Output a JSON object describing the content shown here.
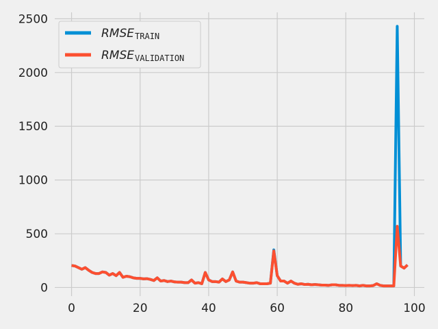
{
  "chart_data": {
    "type": "line",
    "title": "",
    "xlabel": "",
    "ylabel": "",
    "xlim": [
      -4.9,
      102.9
    ],
    "ylim": [
      -80,
      2560
    ],
    "x_ticks": [
      0,
      20,
      40,
      60,
      80,
      100
    ],
    "x_tick_labels": [
      "0",
      "20",
      "40",
      "60",
      "80",
      "100"
    ],
    "y_ticks": [
      0,
      500,
      1000,
      1500,
      2000,
      2500
    ],
    "y_tick_labels": [
      "0",
      "500",
      "1000",
      "1500",
      "2000",
      "2500"
    ],
    "grid": true,
    "legend_position": "top-left",
    "series": [
      {
        "name": "RMSE TRAIN",
        "legend_main": "RMSE",
        "legend_sub": "TRAIN",
        "color": "#008fd5",
        "x": [
          0,
          1,
          2,
          3,
          4,
          5,
          6,
          7,
          8,
          9,
          10,
          11,
          12,
          13,
          14,
          15,
          16,
          17,
          18,
          19,
          20,
          21,
          22,
          23,
          24,
          25,
          26,
          27,
          28,
          29,
          30,
          31,
          32,
          33,
          34,
          35,
          36,
          37,
          38,
          39,
          40,
          41,
          42,
          43,
          44,
          45,
          46,
          47,
          48,
          49,
          50,
          51,
          52,
          53,
          54,
          55,
          56,
          57,
          58,
          59,
          60,
          61,
          62,
          63,
          64,
          65,
          66,
          67,
          68,
          69,
          70,
          71,
          72,
          73,
          74,
          75,
          76,
          77,
          78,
          79,
          80,
          81,
          82,
          83,
          84,
          85,
          86,
          87,
          88,
          89,
          90,
          91,
          92,
          93,
          94,
          95,
          96,
          97,
          98
        ],
        "values": [
          205,
          200,
          185,
          170,
          185,
          160,
          140,
          130,
          130,
          145,
          140,
          115,
          130,
          110,
          140,
          95,
          105,
          100,
          90,
          85,
          85,
          80,
          82,
          75,
          65,
          90,
          60,
          65,
          55,
          60,
          52,
          50,
          50,
          45,
          45,
          70,
          40,
          45,
          35,
          140,
          70,
          55,
          55,
          50,
          80,
          55,
          70,
          145,
          60,
          50,
          50,
          45,
          40,
          40,
          45,
          35,
          35,
          35,
          40,
          350,
          110,
          60,
          60,
          40,
          60,
          40,
          30,
          35,
          28,
          30,
          25,
          28,
          25,
          22,
          22,
          20,
          25,
          25,
          20,
          20,
          18,
          20,
          18,
          20,
          15,
          20,
          15,
          15,
          18,
          35,
          20,
          15,
          15,
          15,
          15,
          2430,
          200,
          180,
          210
        ]
      },
      {
        "name": "RMSE VALIDATION",
        "legend_main": "RMSE",
        "legend_sub": "VALIDATION",
        "color": "#fc4f30",
        "x": [
          0,
          1,
          2,
          3,
          4,
          5,
          6,
          7,
          8,
          9,
          10,
          11,
          12,
          13,
          14,
          15,
          16,
          17,
          18,
          19,
          20,
          21,
          22,
          23,
          24,
          25,
          26,
          27,
          28,
          29,
          30,
          31,
          32,
          33,
          34,
          35,
          36,
          37,
          38,
          39,
          40,
          41,
          42,
          43,
          44,
          45,
          46,
          47,
          48,
          49,
          50,
          51,
          52,
          53,
          54,
          55,
          56,
          57,
          58,
          59,
          60,
          61,
          62,
          63,
          64,
          65,
          66,
          67,
          68,
          69,
          70,
          71,
          72,
          73,
          74,
          75,
          76,
          77,
          78,
          79,
          80,
          81,
          82,
          83,
          84,
          85,
          86,
          87,
          88,
          89,
          90,
          91,
          92,
          93,
          94,
          95,
          96,
          97,
          98
        ],
        "values": [
          205,
          200,
          185,
          170,
          185,
          160,
          140,
          130,
          130,
          145,
          140,
          115,
          130,
          110,
          140,
          95,
          105,
          100,
          90,
          85,
          85,
          80,
          82,
          75,
          65,
          90,
          60,
          65,
          55,
          60,
          52,
          50,
          50,
          45,
          45,
          70,
          40,
          45,
          35,
          140,
          70,
          55,
          55,
          50,
          80,
          55,
          70,
          145,
          60,
          50,
          50,
          45,
          40,
          40,
          45,
          35,
          35,
          35,
          40,
          340,
          110,
          60,
          60,
          40,
          60,
          40,
          30,
          35,
          28,
          30,
          25,
          28,
          25,
          22,
          22,
          20,
          25,
          25,
          20,
          20,
          18,
          20,
          18,
          20,
          15,
          20,
          15,
          15,
          18,
          35,
          20,
          15,
          15,
          15,
          15,
          570,
          200,
          180,
          210
        ]
      }
    ]
  }
}
